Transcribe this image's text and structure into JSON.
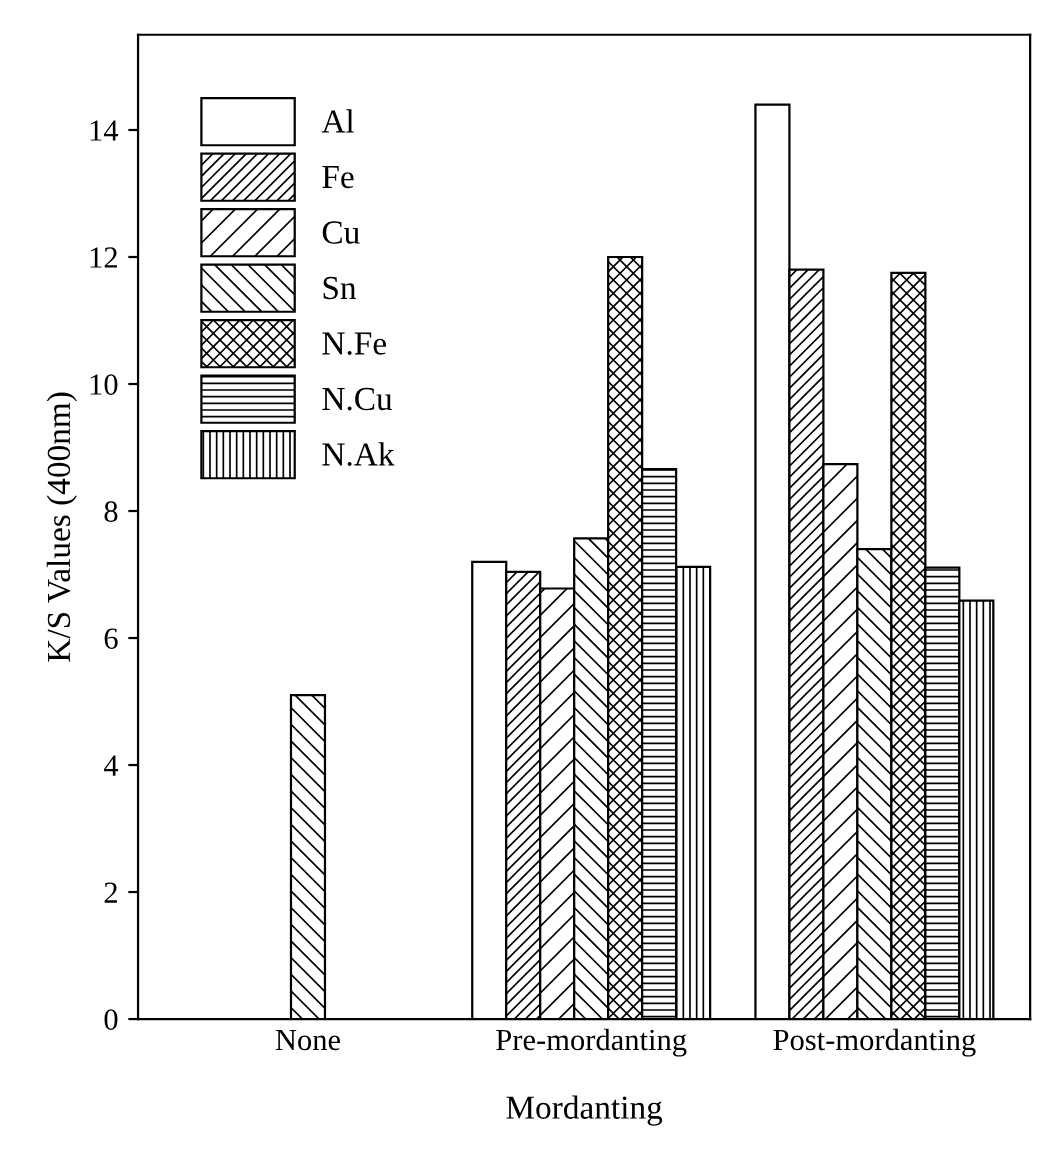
{
  "chart_data": {
    "type": "bar",
    "xlabel": "Mordanting",
    "ylabel": "K/S Values (400nm)",
    "categories": [
      "None",
      "Pre-mordanting",
      "Post-mordanting"
    ],
    "series": [
      {
        "name": "Al",
        "values": [
          null,
          7.2,
          14.4
        ]
      },
      {
        "name": "Fe",
        "values": [
          null,
          7.04,
          11.8
        ]
      },
      {
        "name": "Cu",
        "values": [
          null,
          6.78,
          8.74
        ]
      },
      {
        "name": "Sn",
        "values": [
          5.1,
          7.57,
          7.4
        ]
      },
      {
        "name": "N.Fe",
        "values": [
          null,
          12.0,
          11.75
        ]
      },
      {
        "name": "N.Cu",
        "values": [
          null,
          8.66,
          7.11
        ]
      },
      {
        "name": "N.Ak",
        "values": [
          null,
          7.12,
          6.59
        ]
      }
    ],
    "ylim": [
      0,
      15.5
    ],
    "yticks": [
      0,
      2,
      4,
      6,
      8,
      10,
      12,
      14
    ],
    "legend": "top left",
    "grid": false
  }
}
